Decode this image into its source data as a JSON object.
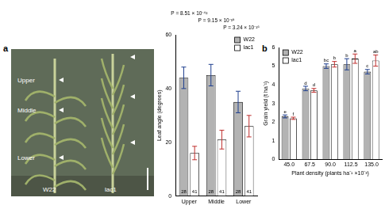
{
  "photo": {
    "panel": "a",
    "leaf_labels": [
      "Upper",
      "Middle",
      "Lower"
    ],
    "genotypes": [
      "W22",
      "lac1"
    ]
  },
  "chart_data": [
    {
      "panel": "a",
      "type": "bar",
      "y_label": "Leaf angle (degrees)",
      "categories": [
        "Upper",
        "Middle",
        "Lower"
      ],
      "series": [
        {
          "name": "W22",
          "color": "#b3b3b3",
          "values": [
            44,
            45,
            35
          ],
          "errors": [
            4,
            4,
            4
          ],
          "n": [
            28,
            28,
            28
          ]
        },
        {
          "name": "lac1",
          "color": "#ffffff",
          "values": [
            16,
            21,
            26
          ],
          "errors": [
            2.5,
            3.5,
            4
          ],
          "n": [
            41,
            41,
            41
          ]
        }
      ],
      "p_values": [
        "P = 8.51 × 10⁻⁴²",
        "P = 9.15 × 10⁻³⁹",
        "P = 3.24 × 10⁻¹⁶"
      ],
      "ylim": [
        0,
        60
      ],
      "yticks": [
        0,
        20,
        40,
        60
      ],
      "grid": false,
      "legend": "upper right"
    },
    {
      "panel": "b",
      "type": "bar",
      "x_label": "Plant density (plants ha⁻¹ ×10⁻³)",
      "y_label": "Grain yield (t ha⁻¹)",
      "categories": [
        "45.0",
        "67.5",
        "90.0",
        "112.5",
        "135.0"
      ],
      "series": [
        {
          "name": "W22",
          "color": "#b3b3b3",
          "values": [
            2.3,
            3.8,
            5.0,
            5.1,
            4.7
          ],
          "errors": [
            0.08,
            0.12,
            0.12,
            0.3,
            0.12
          ],
          "letters": [
            "e",
            "d",
            "bc",
            "b",
            "c"
          ]
        },
        {
          "name": "lac1",
          "color": "#ffffff",
          "values": [
            2.2,
            3.7,
            5.1,
            5.4,
            5.3
          ],
          "errors": [
            0.06,
            0.1,
            0.15,
            0.25,
            0.3
          ],
          "letters": [
            "f",
            "d",
            "b",
            "a",
            "ab"
          ]
        }
      ],
      "ylim": [
        0,
        6
      ],
      "yticks": [
        0,
        1,
        2,
        3,
        4,
        5,
        6
      ],
      "grid": false,
      "legend": "upper left"
    }
  ]
}
